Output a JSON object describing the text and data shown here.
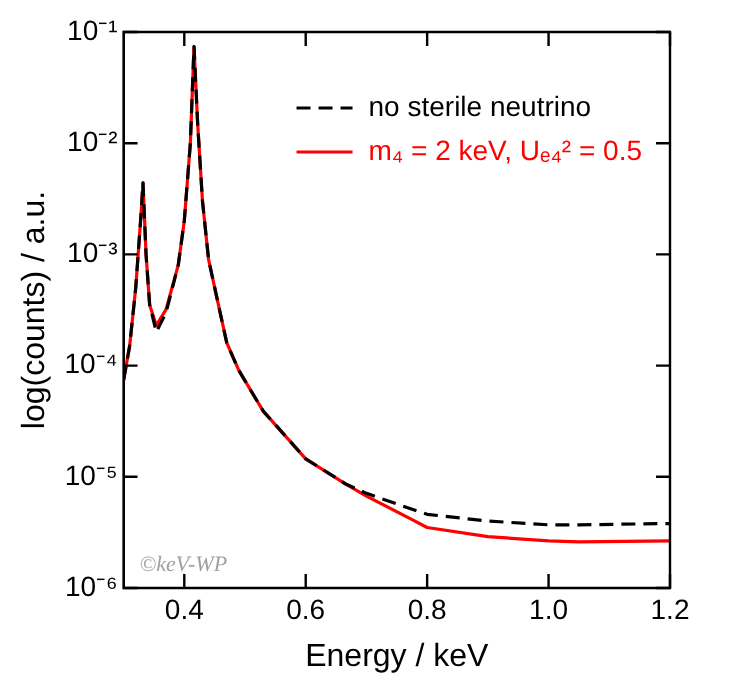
{
  "chart_data": {
    "type": "line",
    "xlabel": "Energy / keV",
    "ylabel": "log(counts) / a.u.",
    "x": [
      0.3,
      0.31,
      0.32,
      0.328,
      0.332,
      0.337,
      0.343,
      0.354,
      0.37,
      0.39,
      0.4,
      0.41,
      0.416,
      0.422,
      0.43,
      0.44,
      0.454,
      0.47,
      0.49,
      0.53,
      0.6,
      0.666,
      0.7,
      0.78,
      0.8,
      0.9,
      1.0,
      1.05,
      1.2
    ],
    "series": [
      {
        "name": "no sterile neutrino",
        "color": "#000000",
        "line_style": "dashed",
        "values": [
          7.4e-05,
          0.00015,
          0.0005,
          0.002,
          0.0044,
          0.001,
          0.00035,
          0.0002,
          0.0003,
          0.0008,
          0.002,
          0.01,
          0.074,
          0.015,
          0.003,
          0.0009,
          0.0004,
          0.00016,
          9e-05,
          3.9e-05,
          1.45e-05,
          8.6e-06,
          7.1e-06,
          5e-06,
          4.6e-06,
          4e-06,
          3.7e-06,
          3.7e-06,
          3.8e-06
        ]
      },
      {
        "name": "m₄ = 2 keV, Uₑ₄² = 0.5",
        "color": "#ff0000",
        "line_style": "solid",
        "values": [
          7.4e-05,
          0.00015,
          0.0005,
          0.002,
          0.0044,
          0.001,
          0.00035,
          0.00023,
          0.00032,
          0.0008,
          0.002,
          0.01,
          0.074,
          0.015,
          0.003,
          0.0009,
          0.0004,
          0.00016,
          9e-05,
          3.9e-05,
          1.45e-05,
          8.6e-06,
          6.7e-06,
          4e-06,
          3.5e-06,
          2.9e-06,
          2.65e-06,
          2.6e-06,
          2.65e-06
        ]
      }
    ],
    "xlim": [
      0.3,
      1.2
    ],
    "xticks": [
      0.4,
      0.6,
      0.8,
      {
        "value": 1,
        "label": "1.0"
      },
      1.2
    ],
    "ylim": [
      1e-06,
      0.1
    ],
    "yticks": [
      {
        "value": 1e-06,
        "label": "10⁻⁶"
      },
      {
        "value": 1e-05,
        "label": "10⁻⁵"
      },
      {
        "value": 0.0001,
        "label": "10⁻⁴"
      },
      {
        "value": 0.001,
        "label": "10⁻³"
      },
      {
        "value": 0.01,
        "label": "10⁻²"
      },
      {
        "value": 0.1,
        "label": "10⁻¹"
      }
    ],
    "log": "y",
    "grid": false,
    "legend": "top right",
    "marker": "none",
    "annotations": [
      "©keV-WP"
    ]
  }
}
